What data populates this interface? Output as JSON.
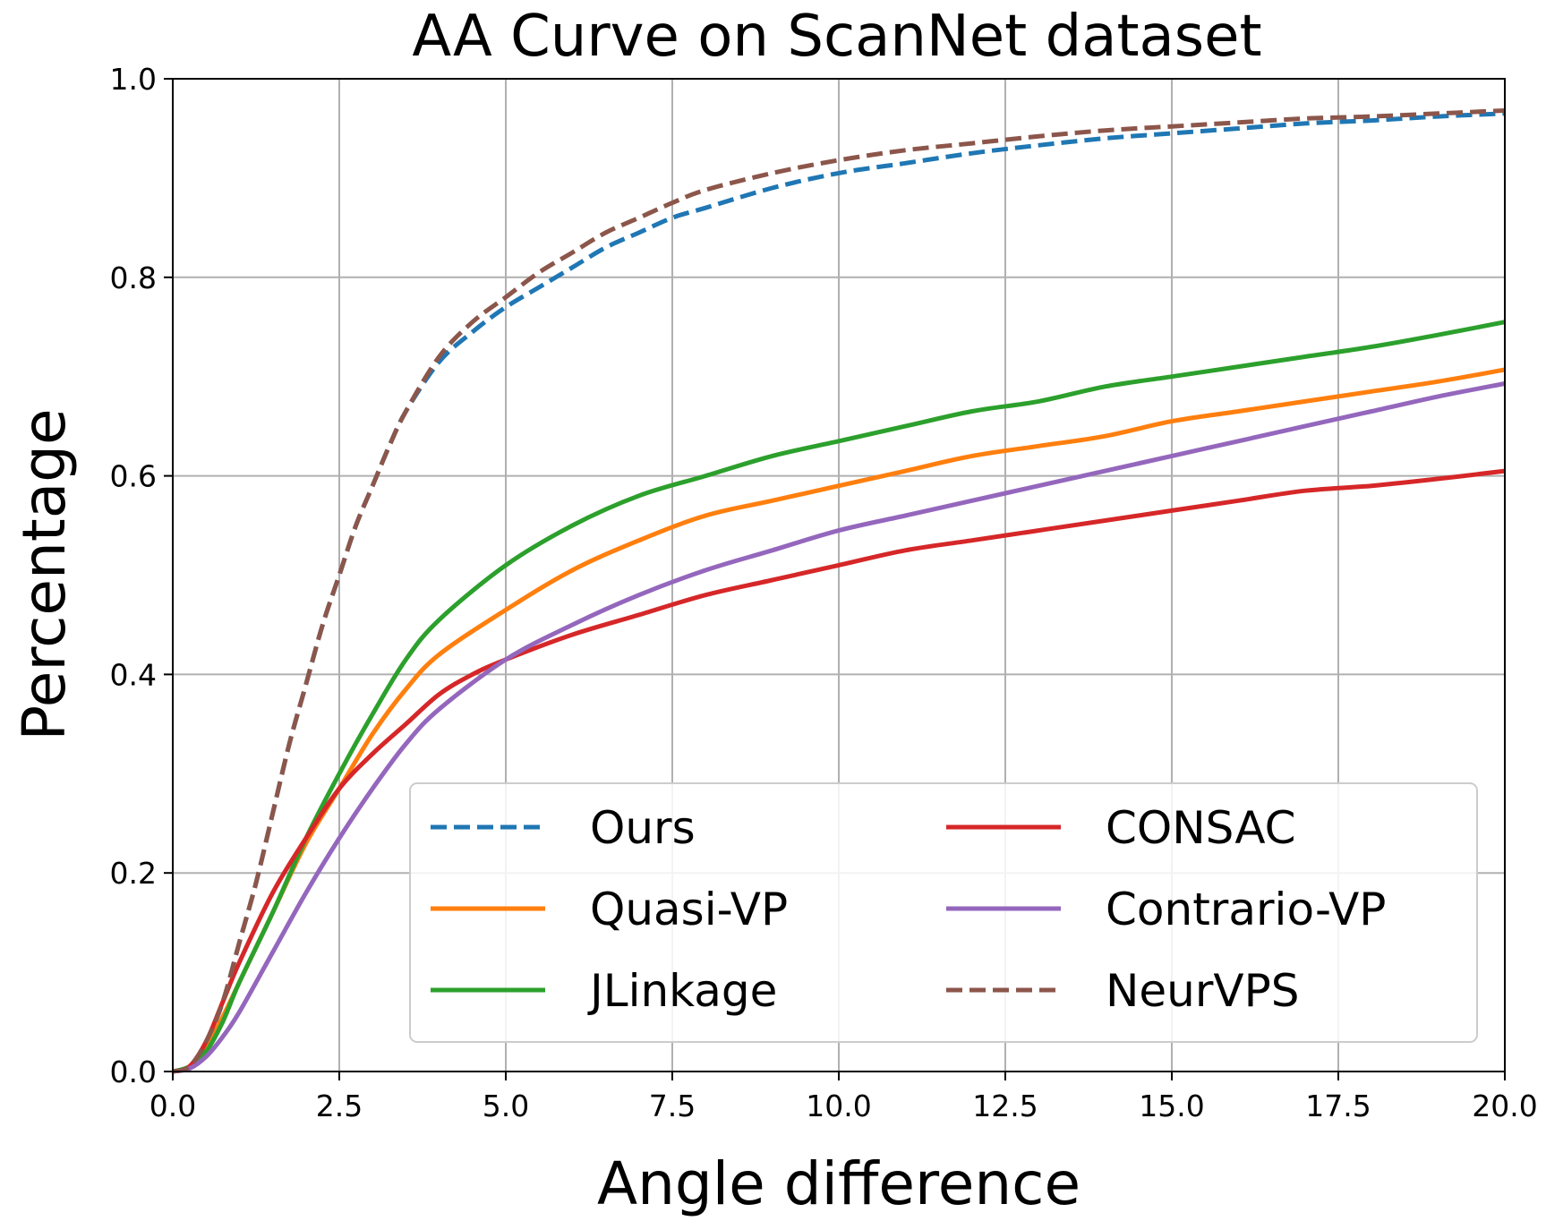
{
  "chart_data": {
    "type": "line",
    "title": "AA Curve on ScanNet dataset",
    "xlabel": "Angle difference",
    "ylabel": "Percentage",
    "xlim": [
      0,
      20
    ],
    "ylim": [
      0,
      1
    ],
    "xticks": [
      0,
      2.5,
      5,
      7.5,
      10,
      12.5,
      15,
      17.5,
      20
    ],
    "xtick_labels": [
      "0.0",
      "2.5",
      "5.0",
      "7.5",
      "10.0",
      "12.5",
      "15.0",
      "17.5",
      "20.0"
    ],
    "yticks": [
      0,
      0.2,
      0.4,
      0.6,
      0.8,
      1.0
    ],
    "ytick_labels": [
      "0.0",
      "0.2",
      "0.4",
      "0.6",
      "0.8",
      "1.0"
    ],
    "grid": true,
    "legend_position": "lower-right",
    "series": [
      {
        "name": "Ours",
        "color": "#1f77b4",
        "dash": "dashed",
        "x": [
          0,
          0.25,
          0.5,
          0.75,
          1,
          1.25,
          1.5,
          1.75,
          2,
          2.25,
          2.5,
          2.75,
          3,
          3.25,
          3.5,
          4,
          4.5,
          5,
          5.5,
          6,
          6.5,
          7,
          7.5,
          8,
          9,
          10,
          11,
          12,
          13,
          14,
          15,
          16,
          17,
          18,
          19,
          20
        ],
        "y": [
          0,
          0.005,
          0.03,
          0.07,
          0.13,
          0.19,
          0.26,
          0.33,
          0.39,
          0.45,
          0.5,
          0.55,
          0.59,
          0.63,
          0.665,
          0.715,
          0.745,
          0.77,
          0.79,
          0.81,
          0.83,
          0.845,
          0.86,
          0.87,
          0.89,
          0.905,
          0.915,
          0.925,
          0.933,
          0.94,
          0.945,
          0.95,
          0.955,
          0.958,
          0.962,
          0.965
        ]
      },
      {
        "name": "Quasi-VP",
        "color": "#ff7f0e",
        "dash": "solid",
        "x": [
          0,
          0.25,
          0.5,
          0.75,
          1,
          1.5,
          2,
          2.5,
          3,
          3.5,
          4,
          5,
          6,
          7,
          8,
          9,
          10,
          11,
          12,
          13,
          14,
          15,
          16,
          17,
          18,
          19,
          20
        ],
        "y": [
          0,
          0.005,
          0.025,
          0.055,
          0.09,
          0.16,
          0.23,
          0.285,
          0.34,
          0.385,
          0.42,
          0.465,
          0.505,
          0.535,
          0.56,
          0.575,
          0.59,
          0.605,
          0.62,
          0.63,
          0.64,
          0.655,
          0.665,
          0.675,
          0.685,
          0.695,
          0.707
        ]
      },
      {
        "name": "JLinkage",
        "color": "#2ca02c",
        "dash": "solid",
        "x": [
          0,
          0.25,
          0.5,
          0.75,
          1,
          1.5,
          2,
          2.5,
          3,
          3.5,
          4,
          5,
          6,
          7,
          8,
          9,
          10,
          11,
          12,
          13,
          14,
          15,
          16,
          17,
          18,
          19,
          20
        ],
        "y": [
          0,
          0.005,
          0.02,
          0.05,
          0.09,
          0.16,
          0.235,
          0.3,
          0.36,
          0.415,
          0.455,
          0.51,
          0.55,
          0.58,
          0.6,
          0.62,
          0.635,
          0.65,
          0.665,
          0.675,
          0.69,
          0.7,
          0.71,
          0.72,
          0.73,
          0.742,
          0.755
        ]
      },
      {
        "name": "CONSAC",
        "color": "#d62728",
        "dash": "solid",
        "x": [
          0,
          0.25,
          0.5,
          0.75,
          1,
          1.5,
          2,
          2.5,
          3,
          3.5,
          4,
          4.5,
          5,
          6,
          7,
          8,
          9,
          10,
          11,
          12,
          13,
          14,
          15,
          16,
          17,
          18,
          19,
          20
        ],
        "y": [
          0,
          0.005,
          0.03,
          0.07,
          0.11,
          0.18,
          0.235,
          0.285,
          0.32,
          0.35,
          0.38,
          0.4,
          0.415,
          0.44,
          0.46,
          0.48,
          0.495,
          0.51,
          0.525,
          0.535,
          0.545,
          0.555,
          0.565,
          0.575,
          0.585,
          0.59,
          0.597,
          0.605
        ]
      },
      {
        "name": "Contrario-VP",
        "color": "#9467bd",
        "dash": "solid",
        "x": [
          0,
          0.25,
          0.5,
          0.75,
          1,
          1.5,
          2,
          2.5,
          3,
          3.5,
          4,
          5,
          6,
          7,
          8,
          9,
          10,
          11,
          12,
          13,
          14,
          15,
          16,
          17,
          18,
          19,
          20
        ],
        "y": [
          0,
          0.003,
          0.015,
          0.035,
          0.06,
          0.12,
          0.18,
          0.235,
          0.285,
          0.33,
          0.365,
          0.415,
          0.45,
          0.48,
          0.505,
          0.525,
          0.545,
          0.56,
          0.575,
          0.59,
          0.605,
          0.62,
          0.635,
          0.65,
          0.665,
          0.68,
          0.693
        ]
      },
      {
        "name": "NeurVPS",
        "color": "#8c564b",
        "dash": "dashed",
        "x": [
          0,
          0.25,
          0.5,
          0.75,
          1,
          1.25,
          1.5,
          1.75,
          2,
          2.25,
          2.5,
          2.75,
          3,
          3.25,
          3.5,
          4,
          4.5,
          5,
          5.5,
          6,
          6.5,
          7,
          7.5,
          8,
          9,
          10,
          11,
          12,
          13,
          14,
          15,
          16,
          17,
          18,
          19,
          20
        ],
        "y": [
          0,
          0.005,
          0.03,
          0.07,
          0.13,
          0.19,
          0.26,
          0.33,
          0.39,
          0.45,
          0.5,
          0.55,
          0.59,
          0.63,
          0.665,
          0.72,
          0.755,
          0.78,
          0.805,
          0.825,
          0.845,
          0.86,
          0.875,
          0.888,
          0.905,
          0.918,
          0.928,
          0.935,
          0.942,
          0.948,
          0.952,
          0.956,
          0.96,
          0.962,
          0.965,
          0.968
        ]
      }
    ]
  }
}
